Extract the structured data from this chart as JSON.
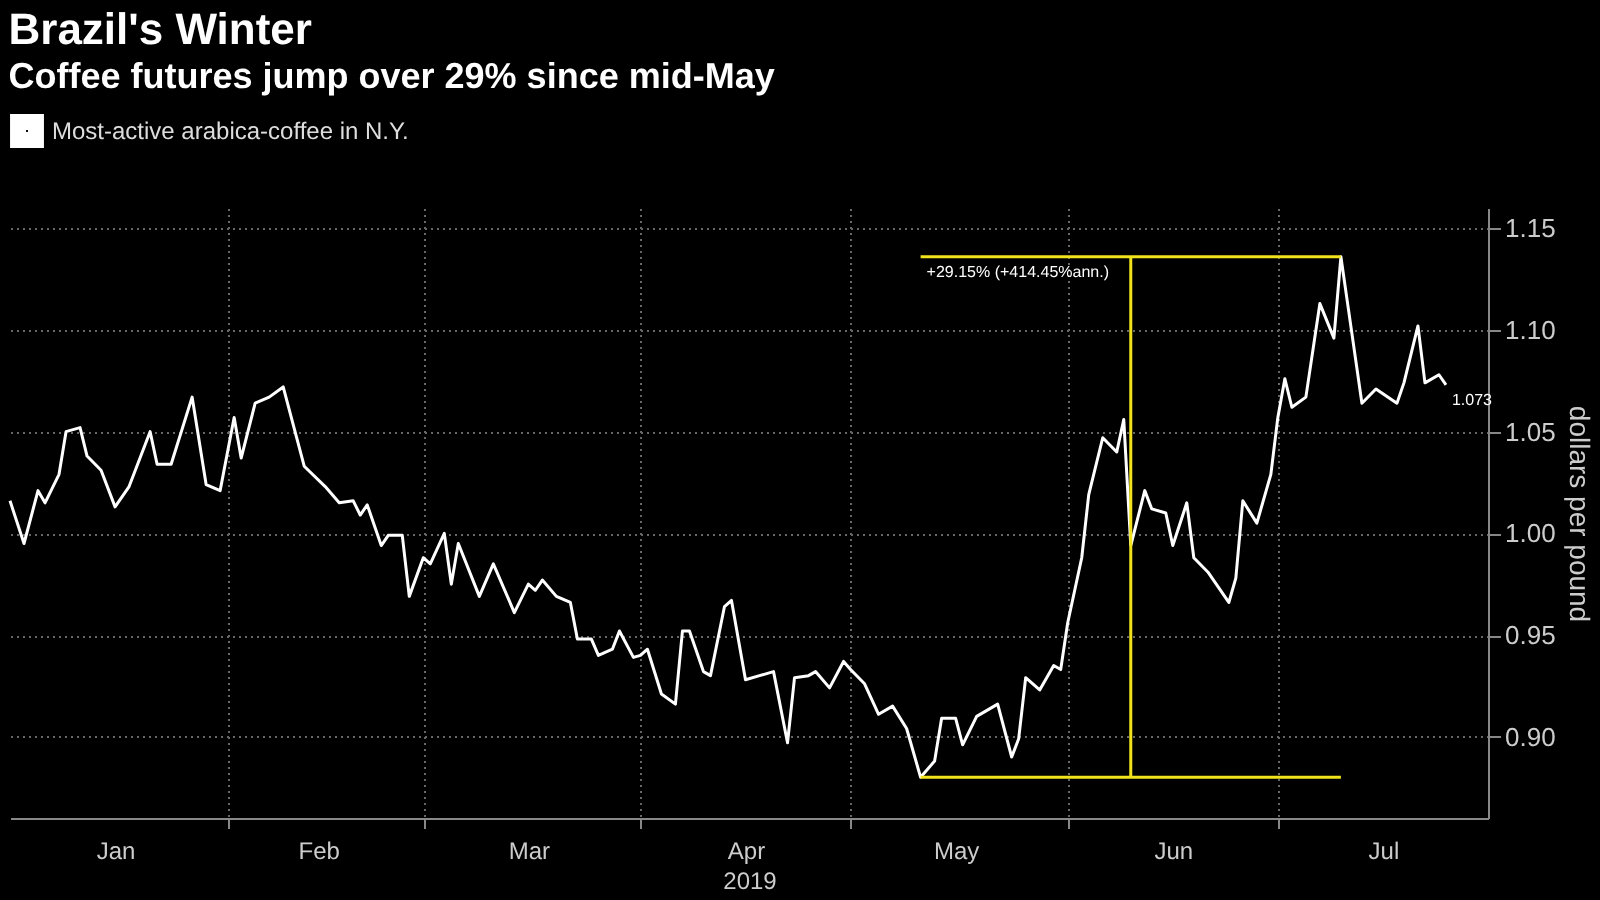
{
  "chart_data": {
    "type": "line",
    "title": "Brazil's Winter",
    "subtitle": "Coffee futures jump over 29% since mid-May",
    "xlabel": "2019",
    "ylabel": "dollars per pound",
    "xlim": [
      "2019-01-01",
      "2019-07-31"
    ],
    "xticks": [
      {
        "value": "2019-01-16",
        "label": "Jan"
      },
      {
        "value": "2019-02-01",
        "label": null
      },
      {
        "value": "2019-02-14",
        "label": "Feb"
      },
      {
        "value": "2019-03-01",
        "label": null
      },
      {
        "value": "2019-03-16",
        "label": "Mar"
      },
      {
        "value": "2019-04-01",
        "label": null
      },
      {
        "value": "2019-04-16",
        "label": "Apr"
      },
      {
        "value": "2019-05-01",
        "label": null
      },
      {
        "value": "2019-05-16",
        "label": "May"
      },
      {
        "value": "2019-06-01",
        "label": null
      },
      {
        "value": "2019-06-16",
        "label": "Jun"
      },
      {
        "value": "2019-07-01",
        "label": null
      },
      {
        "value": "2019-07-16",
        "label": "Jul"
      }
    ],
    "ylim": [
      0.86,
      1.16
    ],
    "yticks": [
      {
        "value": 0.9,
        "label": "0.90"
      },
      0.95,
      {
        "value": 1.0,
        "label": "1.00"
      },
      1.05,
      {
        "value": 1.1,
        "label": "1.10"
      },
      1.15
    ],
    "grid": true,
    "legend": "top left",
    "series": [
      {
        "name": "Most-active arabica-coffee in N.Y.",
        "color": "#ffffff",
        "x": [
          "2019-01-01",
          "2019-01-03",
          "2019-01-05",
          "2019-01-06",
          "2019-01-08",
          "2019-01-09",
          "2019-01-11",
          "2019-01-12",
          "2019-01-14",
          "2019-01-16",
          "2019-01-18",
          "2019-01-21",
          "2019-01-22",
          "2019-01-24",
          "2019-01-27",
          "2019-01-29",
          "2019-01-31",
          "2019-02-02",
          "2019-02-03",
          "2019-02-05",
          "2019-02-07",
          "2019-02-09",
          "2019-02-12",
          "2019-02-15",
          "2019-02-17",
          "2019-02-19",
          "2019-02-20",
          "2019-02-21",
          "2019-02-23",
          "2019-02-24",
          "2019-02-26",
          "2019-02-27",
          "2019-03-01",
          "2019-03-02",
          "2019-03-04",
          "2019-03-05",
          "2019-03-06",
          "2019-03-09",
          "2019-03-11",
          "2019-03-14",
          "2019-03-16",
          "2019-03-17",
          "2019-03-18",
          "2019-03-20",
          "2019-03-22",
          "2019-03-23",
          "2019-03-25",
          "2019-03-26",
          "2019-03-28",
          "2019-03-29",
          "2019-03-31",
          "2019-04-01",
          "2019-04-02",
          "2019-04-04",
          "2019-04-06",
          "2019-04-07",
          "2019-04-08",
          "2019-04-10",
          "2019-04-11",
          "2019-04-13",
          "2019-04-14",
          "2019-04-16",
          "2019-04-18",
          "2019-04-20",
          "2019-04-22",
          "2019-04-23",
          "2019-04-25",
          "2019-04-26",
          "2019-04-28",
          "2019-04-30",
          "2019-05-01",
          "2019-05-03",
          "2019-05-05",
          "2019-05-07",
          "2019-05-09",
          "2019-05-11",
          "2019-05-13",
          "2019-05-14",
          "2019-05-16",
          "2019-05-17",
          "2019-05-19",
          "2019-05-22",
          "2019-05-24",
          "2019-05-25",
          "2019-05-26",
          "2019-05-28",
          "2019-05-30",
          "2019-05-31",
          "2019-06-01",
          "2019-06-03",
          "2019-06-04",
          "2019-06-06",
          "2019-06-08",
          "2019-06-09",
          "2019-06-10",
          "2019-06-12",
          "2019-06-13",
          "2019-06-15",
          "2019-06-16",
          "2019-06-18",
          "2019-06-19",
          "2019-06-21",
          "2019-06-24",
          "2019-06-25",
          "2019-06-26",
          "2019-06-28",
          "2019-06-30",
          "2019-07-01",
          "2019-07-02",
          "2019-07-03",
          "2019-07-05",
          "2019-07-07",
          "2019-07-09",
          "2019-07-10",
          "2019-07-11",
          "2019-07-13",
          "2019-07-15",
          "2019-07-18",
          "2019-07-19",
          "2019-07-21",
          "2019-07-22",
          "2019-07-24",
          "2019-07-25"
        ],
        "values": [
          1.016,
          0.995,
          1.021,
          1.015,
          1.029,
          1.05,
          1.052,
          1.038,
          1.031,
          1.013,
          1.023,
          1.05,
          1.034,
          1.034,
          1.067,
          1.024,
          1.021,
          1.057,
          1.037,
          1.064,
          1.067,
          1.072,
          1.033,
          1.023,
          1.015,
          1.016,
          1.009,
          1.014,
          0.994,
          0.999,
          0.999,
          0.969,
          0.988,
          0.985,
          1.0,
          0.975,
          0.995,
          0.969,
          0.985,
          0.961,
          0.975,
          0.972,
          0.977,
          0.969,
          0.966,
          0.948,
          0.948,
          0.94,
          0.943,
          0.952,
          0.939,
          0.94,
          0.943,
          0.921,
          0.916,
          0.952,
          0.952,
          0.932,
          0.93,
          0.964,
          0.967,
          0.928,
          0.93,
          0.932,
          0.897,
          0.929,
          0.93,
          0.932,
          0.924,
          0.937,
          0.933,
          0.926,
          0.911,
          0.915,
          0.904,
          0.88,
          0.888,
          0.909,
          0.909,
          0.896,
          0.91,
          0.916,
          0.89,
          0.899,
          0.929,
          0.923,
          0.935,
          0.933,
          0.956,
          0.988,
          1.019,
          1.047,
          1.04,
          1.056,
          0.994,
          1.021,
          1.012,
          1.01,
          0.994,
          1.015,
          0.988,
          0.981,
          0.966,
          0.978,
          1.016,
          1.005,
          1.029,
          1.057,
          1.076,
          1.062,
          1.067,
          1.113,
          1.096,
          1.136,
          1.112,
          1.064,
          1.071,
          1.064,
          1.074,
          1.102,
          1.074,
          1.078,
          1.073
        ]
      },
      {
        "color": "#f2e21b",
        "x": [
          "2019-05-11",
          "2019-07-10"
        ],
        "values": [
          1.136,
          1.136
        ]
      },
      {
        "color": "#f2e21b",
        "x": [
          "2019-05-11",
          "2019-07-10"
        ],
        "values": [
          0.88,
          0.88
        ]
      },
      {
        "color": "#f2e21b",
        "x": [
          "2019-06-10",
          "2019-06-10"
        ],
        "values": [
          0.88,
          1.136
        ]
      }
    ],
    "annotations": [
      {
        "text": "+29.15% (+414.45%ann.)",
        "x": "2019-05-11",
        "y": 1.136
      },
      {
        "text": "1.073",
        "x": "2019-07-25",
        "y": 1.073
      }
    ]
  }
}
